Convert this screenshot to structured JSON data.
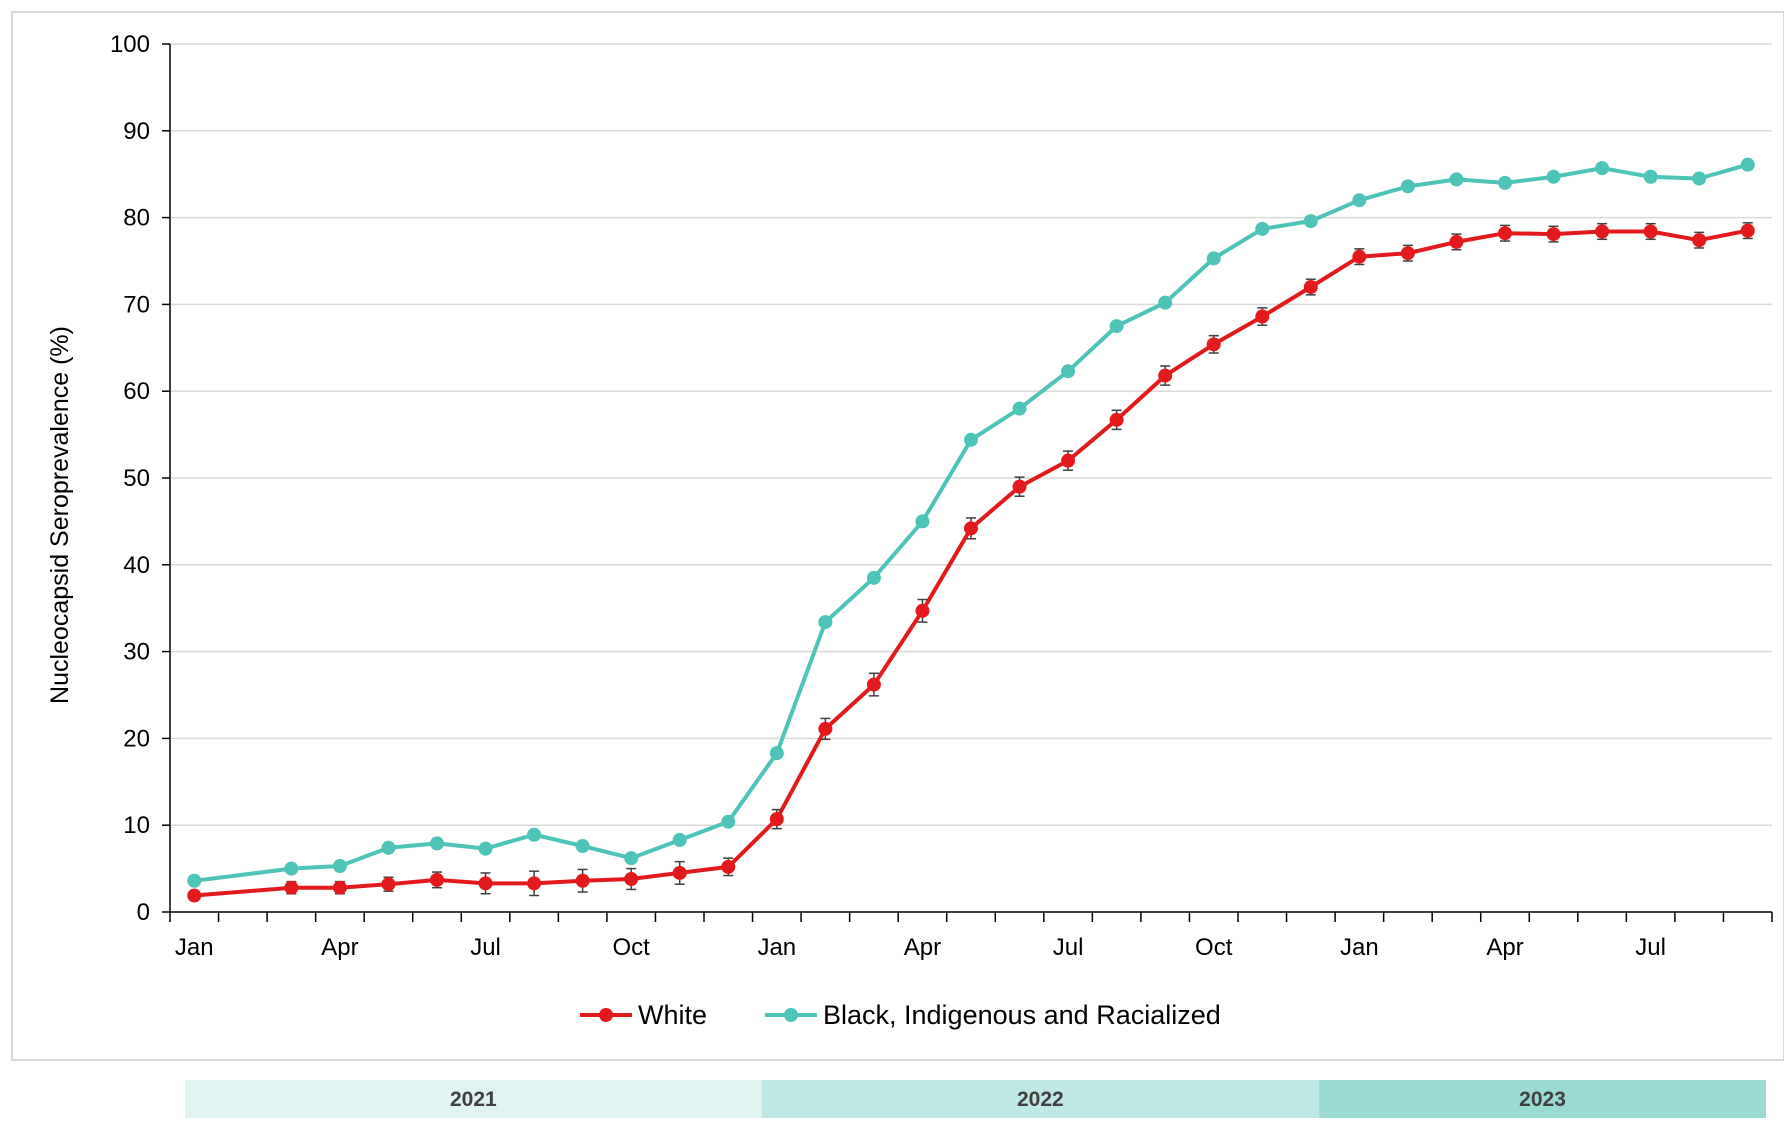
{
  "chart_data": {
    "type": "line",
    "ylabel": "Nucleocapsid Seroprevalence (%)",
    "xlabel": "",
    "ylim": [
      0,
      100
    ],
    "yticks": [
      0,
      10,
      20,
      30,
      40,
      50,
      60,
      70,
      80,
      90,
      100
    ],
    "grid": "horizontal",
    "legend_placement": "bottom-center",
    "x_tick_labels": [
      "Jan",
      "Apr",
      "Jul",
      "Oct",
      "Jan",
      "Apr",
      "Jul",
      "Oct",
      "Jan",
      "Apr",
      "Jul"
    ],
    "x_tick_months": [
      0,
      3,
      6,
      9,
      12,
      15,
      18,
      21,
      24,
      27,
      30
    ],
    "x_range_months": [
      -0.5,
      32.5
    ],
    "year_bands": [
      {
        "label": "2021",
        "start_month": 0,
        "end_month": 12,
        "color": "#dff3f1"
      },
      {
        "label": "2022",
        "start_month": 12,
        "end_month": 23.6,
        "color": "#bde8e3"
      },
      {
        "label": "2023",
        "start_month": 23.6,
        "end_month": 32.9,
        "color": "#9bdad2"
      }
    ],
    "series": [
      {
        "name": "White",
        "color": "#e31a1c",
        "error_bars": true,
        "x_months": [
          0,
          2,
          3,
          4,
          5,
          6,
          7,
          8,
          9,
          10,
          11,
          12,
          13,
          14,
          15,
          16,
          17,
          18,
          19,
          20,
          21,
          22,
          23,
          24,
          25,
          26,
          27,
          28,
          29,
          30,
          31,
          32
        ],
        "values": [
          1.9,
          2.8,
          2.8,
          3.2,
          3.7,
          3.3,
          3.3,
          3.6,
          3.8,
          4.5,
          5.2,
          10.7,
          21.1,
          26.2,
          34.7,
          44.2,
          49.0,
          52.0,
          56.7,
          61.8,
          65.4,
          68.6,
          72.0,
          75.5,
          75.9,
          77.2,
          78.2,
          78.1,
          78.4,
          78.4,
          77.4,
          78.5
        ],
        "errors": [
          0.4,
          0.7,
          0.7,
          0.8,
          0.9,
          1.2,
          1.4,
          1.3,
          1.2,
          1.3,
          1.0,
          1.1,
          1.2,
          1.3,
          1.3,
          1.2,
          1.1,
          1.1,
          1.1,
          1.1,
          1.0,
          1.0,
          0.9,
          0.9,
          0.9,
          0.9,
          0.9,
          0.9,
          0.9,
          0.9,
          0.9,
          0.9
        ]
      },
      {
        "name": "Black, Indigenous and Racialized",
        "color": "#4ec3b8",
        "error_bars": false,
        "x_months": [
          0,
          2,
          3,
          4,
          5,
          6,
          7,
          8,
          9,
          10,
          11,
          12,
          13,
          14,
          15,
          16,
          17,
          18,
          19,
          20,
          21,
          22,
          23,
          24,
          25,
          26,
          27,
          28,
          29,
          30,
          31,
          32
        ],
        "values": [
          3.6,
          5.0,
          5.3,
          7.4,
          7.9,
          7.3,
          8.9,
          7.6,
          6.2,
          8.3,
          10.4,
          18.3,
          33.4,
          38.5,
          45.0,
          54.4,
          58.0,
          62.3,
          67.5,
          70.2,
          75.3,
          78.7,
          79.6,
          82.0,
          83.6,
          84.4,
          84.0,
          84.7,
          85.7,
          84.7,
          84.5,
          86.1
        ]
      }
    ]
  }
}
